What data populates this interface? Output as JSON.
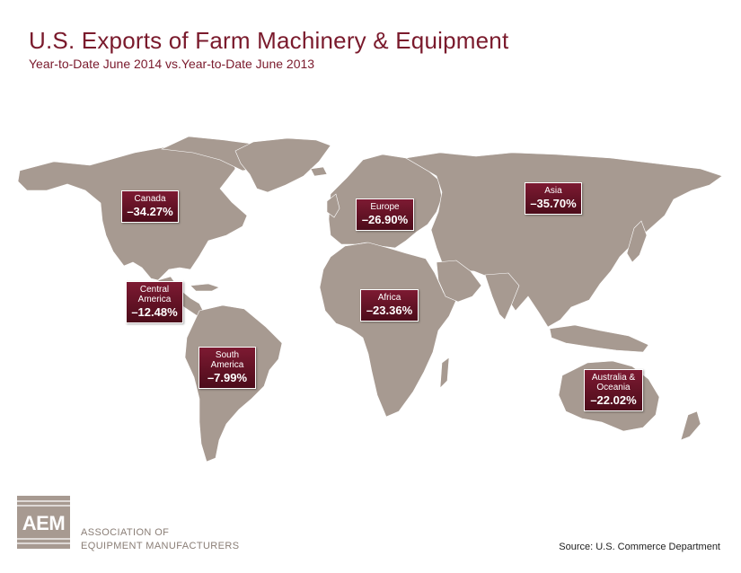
{
  "header": {
    "title": "U.S. Exports of Farm Machinery & Equipment",
    "subtitle": "Year-to-Date June 2014 vs.Year-to-Date June 2013"
  },
  "regions": [
    {
      "id": "canada",
      "name": "Canada",
      "value": "–34.27%"
    },
    {
      "id": "central-america",
      "name": "Central America",
      "value": "–12.48%"
    },
    {
      "id": "south-america",
      "name": "South America",
      "value": "–7.99%"
    },
    {
      "id": "europe",
      "name": "Europe",
      "value": "–26.90%"
    },
    {
      "id": "africa",
      "name": "Africa",
      "value": "–23.36%"
    },
    {
      "id": "asia",
      "name": "Asia",
      "value": "–35.70%"
    },
    {
      "id": "australia-oceania",
      "name": "Australia & Oceania",
      "value": "–22.02%"
    }
  ],
  "footer": {
    "logo_text": "AEM",
    "org_line1": "ASSOCIATION OF",
    "org_line2": "EQUIPMENT MANUFACTURERS",
    "source": "Source: U.S. Commerce Department"
  },
  "colors": {
    "title": "#7a1a2c",
    "land": "#a79a91",
    "label_box": "#6a1428"
  }
}
